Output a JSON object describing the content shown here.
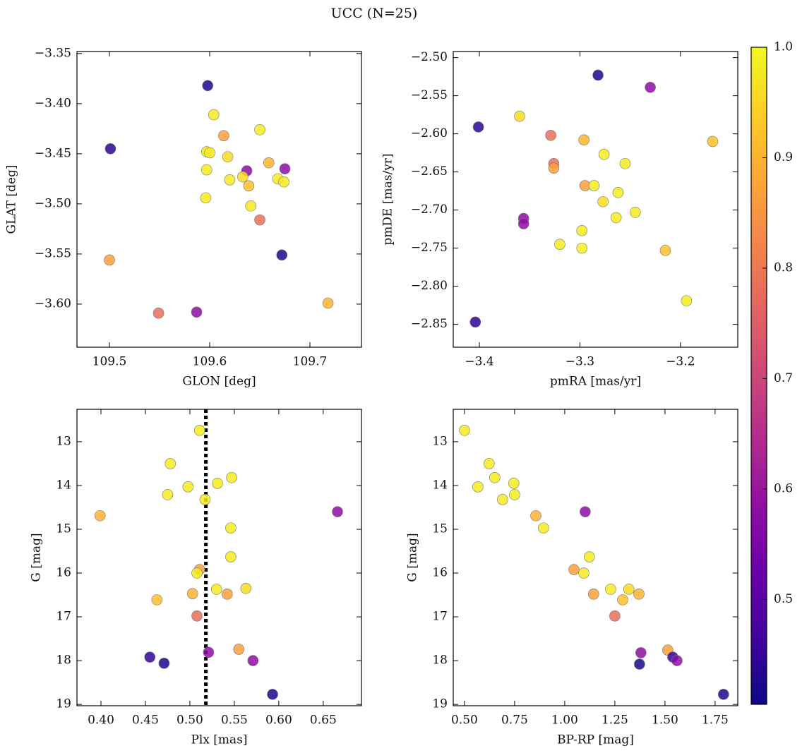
{
  "title": "UCC (N=25)",
  "colorbar": {
    "colormap": "plasma",
    "clim": [
      0.405,
      1.0
    ],
    "ticks": [
      0.5,
      0.6,
      0.7,
      0.8,
      0.9,
      {
        "value": 1.0,
        "label": "1.0"
      }
    ]
  },
  "chart_data": [
    {
      "type": "scatter",
      "x_label": "GLON [deg]",
      "y_label": "GLAT [deg]",
      "xlim": [
        109.4676,
        109.7514
      ],
      "xticks": [
        109.5,
        109.6,
        109.7
      ],
      "ylim": [
        -3.643,
        -3.348
      ],
      "yticks": [
        {
          "value": -3.6,
          "label": "−3.60"
        },
        {
          "value": -3.55,
          "label": "−3.55"
        },
        {
          "value": -3.5,
          "label": "−3.50"
        },
        {
          "value": -3.45,
          "label": "−3.45"
        },
        {
          "value": -3.4,
          "label": "−3.40"
        },
        {
          "value": -3.35,
          "label": "−3.35"
        }
      ],
      "x": [
        109.598,
        109.501,
        109.604,
        109.614,
        109.65,
        109.597,
        109.6,
        109.618,
        109.597,
        109.637,
        109.659,
        109.675,
        109.62,
        109.633,
        109.639,
        109.668,
        109.674,
        109.596,
        109.641,
        109.65,
        109.672,
        109.5,
        109.549,
        109.587,
        109.718
      ],
      "values": [
        -3.382,
        -3.445,
        -3.411,
        -3.432,
        -3.426,
        -3.448,
        -3.449,
        -3.453,
        -3.466,
        -3.467,
        -3.459,
        -3.465,
        -3.476,
        -3.473,
        -3.482,
        -3.475,
        -3.478,
        -3.494,
        -3.502,
        -3.516,
        -3.551,
        -3.556,
        -3.609,
        -3.608,
        -3.599
      ],
      "c": [
        0.42,
        0.44,
        0.98,
        0.87,
        0.98,
        0.98,
        0.98,
        0.96,
        0.98,
        0.58,
        0.9,
        0.58,
        0.98,
        0.96,
        0.92,
        0.98,
        0.98,
        0.98,
        0.98,
        0.78,
        0.42,
        0.87,
        0.78,
        0.58,
        0.9
      ]
    },
    {
      "type": "scatter",
      "x_label": "pmRA [mas/yr]",
      "y_label": "pmDE [mas/yr]",
      "xlim": [
        -3.426,
        -3.143
      ],
      "xticks": [
        {
          "value": -3.4,
          "label": "−3.4"
        },
        {
          "value": -3.3,
          "label": "−3.3"
        },
        {
          "value": -3.2,
          "label": "−3.2"
        }
      ],
      "ylim": [
        -2.88,
        -2.492
      ],
      "yticks": [
        {
          "value": -2.85,
          "label": "−2.85"
        },
        {
          "value": -2.8,
          "label": "−2.80"
        },
        {
          "value": -2.75,
          "label": "−2.75"
        },
        {
          "value": -2.7,
          "label": "−2.70"
        },
        {
          "value": -2.65,
          "label": "−2.65"
        },
        {
          "value": -2.6,
          "label": "−2.60"
        },
        {
          "value": -2.55,
          "label": "−2.55"
        },
        {
          "value": -2.5,
          "label": "−2.50"
        }
      ],
      "x": [
        -3.282,
        -3.23,
        -3.401,
        -3.36,
        -3.329,
        -3.296,
        -3.168,
        -3.326,
        -3.326,
        -3.276,
        -3.255,
        -3.295,
        -3.286,
        -3.262,
        -3.277,
        -3.245,
        -3.264,
        -3.356,
        -3.356,
        -3.298,
        -3.32,
        -3.298,
        -3.215,
        -3.194,
        -3.404
      ],
      "values": [
        -2.523,
        -2.539,
        -2.591,
        -2.577,
        -2.602,
        -2.608,
        -2.61,
        -2.639,
        -2.645,
        -2.627,
        -2.639,
        -2.668,
        -2.668,
        -2.677,
        -2.689,
        -2.703,
        -2.71,
        -2.711,
        -2.718,
        -2.727,
        -2.745,
        -2.75,
        -2.753,
        -2.819,
        -2.847
      ],
      "c": [
        0.42,
        0.58,
        0.44,
        0.96,
        0.78,
        0.9,
        0.92,
        0.78,
        0.87,
        0.98,
        0.98,
        0.87,
        0.98,
        0.98,
        0.96,
        0.98,
        0.98,
        0.58,
        0.58,
        0.98,
        0.98,
        0.98,
        0.92,
        0.98,
        0.44
      ]
    },
    {
      "type": "scatter",
      "x_label": "Plx [mas]",
      "y_label": "G [mag]",
      "xlim": [
        0.373,
        0.693
      ],
      "xticks": [
        {
          "value": 0.4,
          "label": "0.40"
        },
        0.45,
        {
          "value": 0.5,
          "label": "0.50"
        },
        0.55,
        {
          "value": 0.6,
          "label": "0.60"
        },
        0.65
      ],
      "ylim": [
        19.03,
        12.26
      ],
      "yticks": [
        13,
        14,
        15,
        16,
        17,
        18,
        19
      ],
      "vline": 0.518,
      "x": [
        0.511,
        0.478,
        0.547,
        0.498,
        0.531,
        0.475,
        0.517,
        0.399,
        0.666,
        0.546,
        0.546,
        0.511,
        0.508,
        0.53,
        0.563,
        0.503,
        0.542,
        0.463,
        0.508,
        0.455,
        0.471,
        0.521,
        0.555,
        0.571,
        0.593
      ],
      "values": [
        12.74,
        13.5,
        13.82,
        14.03,
        13.95,
        14.21,
        14.32,
        14.69,
        14.6,
        14.97,
        15.63,
        15.92,
        16.0,
        16.37,
        16.35,
        16.47,
        16.48,
        16.61,
        16.98,
        17.92,
        18.06,
        17.81,
        17.74,
        18.0,
        18.77
      ],
      "c": [
        0.98,
        0.98,
        0.98,
        0.98,
        0.98,
        0.98,
        0.98,
        0.9,
        0.58,
        0.98,
        0.98,
        0.87,
        0.98,
        0.98,
        0.96,
        0.9,
        0.87,
        0.92,
        0.78,
        0.45,
        0.42,
        0.58,
        0.87,
        0.58,
        0.42
      ]
    },
    {
      "type": "scatter",
      "x_label": "BP-RP [mag]",
      "y_label": "G [mag]",
      "xlim": [
        0.444,
        1.863
      ],
      "xticks": [
        {
          "value": 0.5,
          "label": "0.50"
        },
        0.75,
        {
          "value": 1.0,
          "label": "1.00"
        },
        1.25,
        {
          "value": 1.5,
          "label": "1.50"
        },
        1.75
      ],
      "ylim": [
        19.03,
        12.26
      ],
      "yticks": [
        13,
        14,
        15,
        16,
        17,
        18,
        19
      ],
      "x": [
        0.5,
        0.623,
        0.651,
        0.567,
        0.746,
        0.75,
        0.69,
        0.856,
        1.102,
        0.894,
        1.123,
        1.046,
        1.095,
        1.229,
        1.32,
        1.144,
        1.37,
        1.289,
        1.25,
        1.38,
        1.373,
        1.514,
        1.539,
        1.56,
        1.792
      ],
      "values": [
        12.74,
        13.5,
        13.82,
        14.03,
        13.95,
        14.21,
        14.32,
        14.69,
        14.6,
        14.97,
        15.63,
        15.92,
        16.0,
        16.37,
        16.37,
        16.48,
        16.48,
        16.61,
        16.98,
        17.82,
        18.08,
        17.76,
        17.92,
        18.0,
        18.77
      ],
      "c": [
        0.98,
        0.98,
        0.98,
        0.98,
        0.98,
        0.98,
        0.98,
        0.9,
        0.58,
        0.98,
        0.98,
        0.87,
        0.98,
        0.98,
        0.96,
        0.87,
        0.9,
        0.92,
        0.78,
        0.58,
        0.42,
        0.87,
        0.45,
        0.58,
        0.42
      ]
    }
  ]
}
